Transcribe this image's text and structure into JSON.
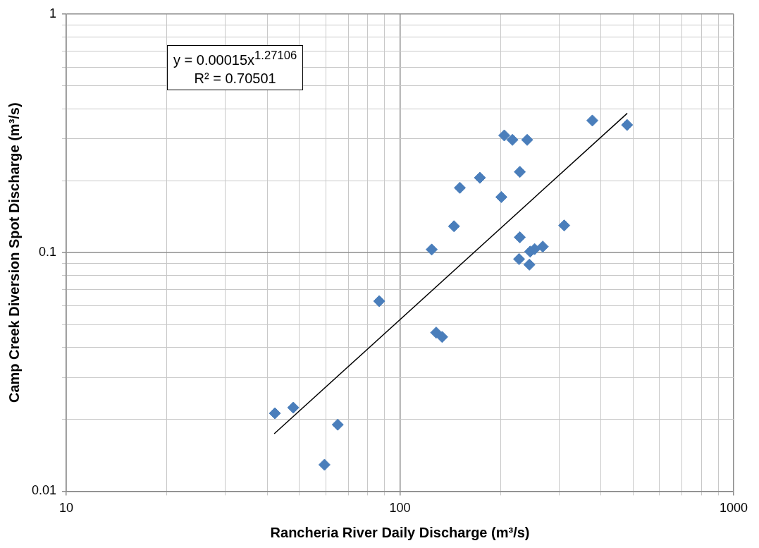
{
  "chart_data": {
    "type": "scatter",
    "xlabel": "Rancheria River Daily Discharge (m³/s)",
    "ylabel": "Camp Creek Diversion Spot Discharge (m³/s)",
    "log": "xy",
    "grid": true,
    "legend": false,
    "marker": "diamond",
    "xlim": [
      10,
      1000
    ],
    "ylim": [
      0.01,
      1
    ],
    "xticks": [
      10,
      {
        "value": 20,
        "label": null
      },
      {
        "value": 30,
        "label": null
      },
      {
        "value": 40,
        "label": null
      },
      {
        "value": 50,
        "label": null
      },
      {
        "value": 60,
        "label": null
      },
      {
        "value": 70,
        "label": null
      },
      {
        "value": 80,
        "label": null
      },
      {
        "value": 90,
        "label": null
      },
      100,
      {
        "value": 200,
        "label": null
      },
      {
        "value": 300,
        "label": null
      },
      {
        "value": 400,
        "label": null
      },
      {
        "value": 500,
        "label": null
      },
      {
        "value": 600,
        "label": null
      },
      {
        "value": 700,
        "label": null
      },
      {
        "value": 800,
        "label": null
      },
      {
        "value": 900,
        "label": null
      },
      1000
    ],
    "yticks": [
      0.01,
      {
        "value": 0.02,
        "label": null
      },
      {
        "value": 0.03,
        "label": null
      },
      {
        "value": 0.04,
        "label": null
      },
      {
        "value": 0.05,
        "label": null
      },
      {
        "value": 0.06,
        "label": null
      },
      {
        "value": 0.07,
        "label": null
      },
      {
        "value": 0.08,
        "label": null
      },
      {
        "value": 0.09,
        "label": null
      },
      0.1,
      {
        "value": 0.2,
        "label": null
      },
      {
        "value": 0.3,
        "label": null
      },
      {
        "value": 0.4,
        "label": null
      },
      {
        "value": 0.5,
        "label": null
      },
      {
        "value": 0.6,
        "label": null
      },
      {
        "value": 0.7,
        "label": null
      },
      {
        "value": 0.8,
        "label": null
      },
      {
        "value": 0.9,
        "label": null
      },
      1
    ],
    "annotations": [
      "y = 0.00015x$^{1.27106}$",
      "R² = 0.70501"
    ],
    "series": [
      {
        "type": "scatter",
        "color": "#4a7ebb",
        "x": [
          42.2,
          47.9,
          59.4,
          65.1,
          86.7,
          124.5,
          128.4,
          133.8,
          145.2,
          151.2,
          173.6,
          201.3,
          205.4,
          217.3,
          228.7,
          228.7,
          227.5,
          240.6,
          244.3,
          245.6,
          253.2,
          267.9,
          310.6,
          377.2,
          479.5
        ],
        "values": [
          0.0212,
          0.0224,
          0.0129,
          0.019,
          0.0626,
          0.103,
          0.0462,
          0.0443,
          0.129,
          0.187,
          0.206,
          0.171,
          0.31,
          0.297,
          0.218,
          0.116,
          0.094,
          0.297,
          0.089,
          0.101,
          0.1035,
          0.106,
          0.13,
          0.358,
          0.343
        ]
      },
      {
        "type": "line",
        "color": "#000000",
        "marker": "none",
        "x": [
          42,
          480
        ],
        "values": [
          0.0174,
          0.384
        ]
      }
    ]
  }
}
